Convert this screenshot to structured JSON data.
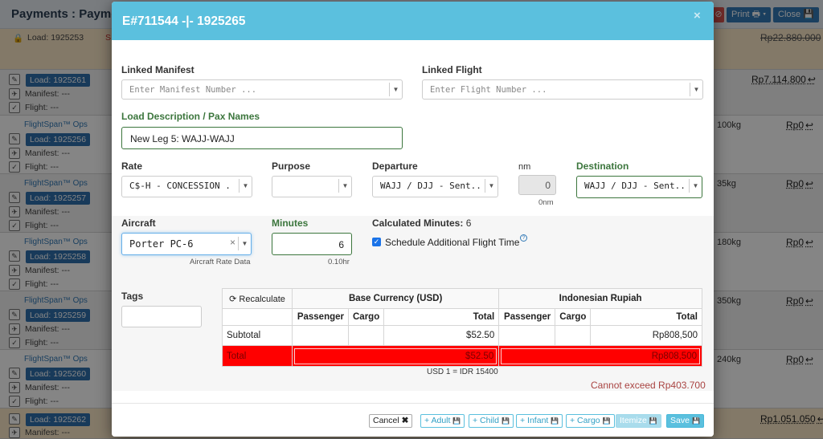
{
  "background": {
    "title": "Payments : Payment",
    "print_label": "Print",
    "close_label": "Close",
    "rows": [
      {
        "ops": "",
        "load": "Load: 1925253",
        "kg": "",
        "amount": "Rp22.880.000"
      },
      {
        "ops": "",
        "load": "Load: 1925261",
        "kg": "",
        "amount": "Rp7.114.800"
      },
      {
        "ops": "FlightSpan™ Ops",
        "load": "Load: 1925256",
        "kg": "100kg",
        "amount": "Rp0"
      },
      {
        "ops": "FlightSpan™ Ops",
        "load": "Load: 1925257",
        "kg": "35kg",
        "amount": "Rp0"
      },
      {
        "ops": "FlightSpan™ Ops",
        "load": "Load: 1925258",
        "kg": "180kg",
        "amount": "Rp0"
      },
      {
        "ops": "FlightSpan™ Ops",
        "load": "Load: 1925259",
        "kg": "350kg",
        "amount": "Rp0"
      },
      {
        "ops": "FlightSpan™ Ops",
        "load": "Load: 1925260",
        "kg": "240kg",
        "amount": "Rp0"
      },
      {
        "ops": "",
        "load": "Load: 1925262",
        "kg": "",
        "amount": "Rp1.051.050"
      }
    ],
    "manifest_label": "Manifest: ---",
    "flight_label": "Flight: ---"
  },
  "modal": {
    "title": "E#711544 -|- 1925265",
    "linked_manifest": {
      "label": "Linked Manifest",
      "placeholder": "Enter Manifest Number ..."
    },
    "linked_flight": {
      "label": "Linked Flight",
      "placeholder": "Enter Flight Number ..."
    },
    "load_description": {
      "label": "Load Description / Pax Names",
      "value": "New Leg 5: WAJJ-WAJJ"
    },
    "rate": {
      "label": "Rate",
      "value": "C$-H - CONCESSION ..."
    },
    "purpose": {
      "label": "Purpose",
      "value": ""
    },
    "departure": {
      "label": "Departure",
      "value": "WAJJ / DJJ - Sent..."
    },
    "nm": {
      "label": "nm",
      "value": "0",
      "hint": "0nm"
    },
    "destination": {
      "label": "Destination",
      "value": "WAJJ / DJJ - Sent..."
    },
    "aircraft": {
      "label": "Aircraft",
      "value": "Porter PC-6",
      "hint": "Aircraft Rate Data"
    },
    "minutes": {
      "label": "Minutes",
      "value": "6",
      "hint": "0.10hr"
    },
    "calculated_minutes": {
      "label": "Calculated Minutes:",
      "value": "6"
    },
    "schedule_additional": {
      "label": "Schedule Additional Flight Time",
      "checked": true
    },
    "tags": {
      "label": "Tags",
      "value": ""
    },
    "cost_table": {
      "recalculate_label": "Recalculate",
      "base_currency_label": "Base Currency (USD)",
      "local_currency_label": "Indonesian Rupiah",
      "columns": [
        "Passenger",
        "Cargo",
        "Total"
      ],
      "subtotal": {
        "label": "Subtotal",
        "usd_total": "$52.50",
        "idr_total": "Rp808,500"
      },
      "total": {
        "label": "Total",
        "usd_total": "$52.50",
        "idr_total": "Rp808,500"
      }
    },
    "exchange_rate_note": "USD 1 = IDR 15400",
    "error_message": "Cannot exceed Rp403.700",
    "buttons": {
      "cancel": "Cancel",
      "add_adult": "+ Adult",
      "add_child": "+ Child",
      "add_infant": "+ Infant",
      "add_cargo": "+ Cargo",
      "itemize": "Itemize",
      "save": "Save"
    }
  },
  "colors": {
    "header": "#5bc0de",
    "total_row": "#ff0000",
    "green_label": "#3c763d",
    "error": "#a94442"
  }
}
